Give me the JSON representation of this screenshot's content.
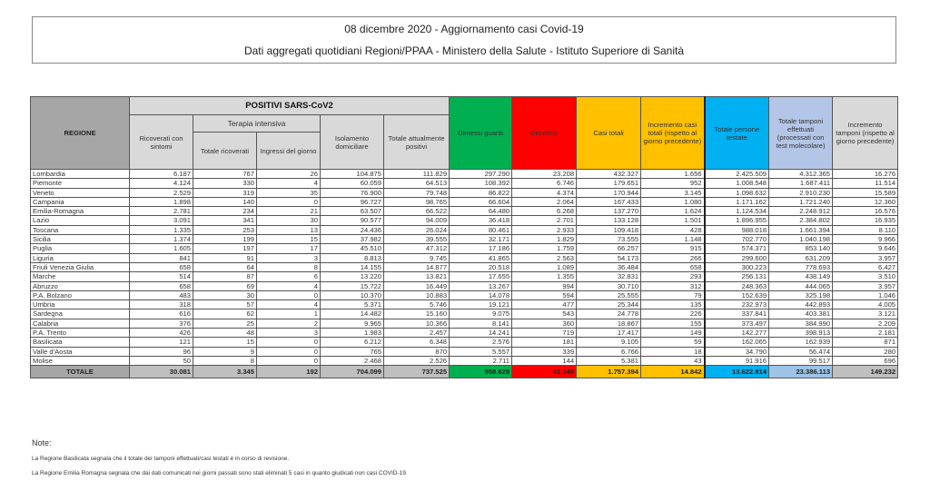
{
  "header": {
    "title": "08 dicembre 2020 - Aggiornamento casi Covid-19",
    "subtitle": "Dati aggregati quotidiani Regioni/PPAA - Ministero della Salute - Istituto Superiore di Sanità"
  },
  "table": {
    "headers": {
      "regione": "REGIONE",
      "positivi": "POSITIVI SARS-CoV2",
      "ricoverati": "Ricoverati con sintomi",
      "terapia": "Terapia intensiva",
      "totale_ricoverati": "Totale ricoverati",
      "ingressi": "Ingressi del giorno",
      "isolamento": "Isolamento domiciliare",
      "totale_positivi": "Totale attualmente positivi",
      "dimessi": "Dimessi guariti",
      "deceduti": "Deceduti",
      "casi": "Casi totali",
      "incremento_casi": "Incremento casi totali (rispetto al giorno precedente)",
      "persone": "Totale persone testate",
      "tamponi": "Totale tamponi effettuati (processati con test molecolare)",
      "incremento_tamponi": "Incremento tamponi (rispetto al giorno precedente)"
    },
    "header_colors": {
      "dimessi": "#00b050",
      "deceduti": "#ff0000",
      "casi": "#ffc000",
      "persone": "#00b0f0",
      "tamponi": "#b4c6e7"
    },
    "rows": [
      [
        "Lombardia",
        "6.187",
        "767",
        "26",
        "104.875",
        "111.829",
        "297.290",
        "23.208",
        "432.327",
        "1.656",
        "2.425.509",
        "4.312.365",
        "16.276"
      ],
      [
        "Piemonte",
        "4.124",
        "330",
        "4",
        "60.059",
        "64.513",
        "108.392",
        "6.746",
        "179.651",
        "952",
        "1.008.548",
        "1.687.411",
        "11.514"
      ],
      [
        "Veneto",
        "2.529",
        "319",
        "35",
        "76.900",
        "79.748",
        "86.822",
        "4.374",
        "170.944",
        "3.145",
        "1.098.632",
        "2.910.230",
        "15.589"
      ],
      [
        "Campania",
        "1.898",
        "140",
        "0",
        "96.727",
        "98.765",
        "66.604",
        "2.064",
        "167.433",
        "1.080",
        "1.171.162",
        "1.721.240",
        "12.360"
      ],
      [
        "Emilia-Romagna",
        "2.781",
        "234",
        "21",
        "63.507",
        "66.522",
        "64.480",
        "6.268",
        "137.270",
        "1.624",
        "1.124.534",
        "2.248.912",
        "16.576"
      ],
      [
        "Lazio",
        "3.091",
        "341",
        "30",
        "90.577",
        "94.009",
        "36.418",
        "2.701",
        "133.128",
        "1.501",
        "1.896.955",
        "2.384.802",
        "16.935"
      ],
      [
        "Toscana",
        "1.335",
        "253",
        "13",
        "24.436",
        "26.024",
        "80.461",
        "2.933",
        "109.418",
        "428",
        "988.018",
        "1.661.394",
        "8.110"
      ],
      [
        "Sicilia",
        "1.374",
        "199",
        "15",
        "37.982",
        "39.555",
        "32.171",
        "1.829",
        "73.555",
        "1.148",
        "702.770",
        "1.040.198",
        "9.966"
      ],
      [
        "Puglia",
        "1.605",
        "197",
        "17",
        "45.510",
        "47.312",
        "17.186",
        "1.759",
        "66.257",
        "915",
        "574.371",
        "853.140",
        "9.646"
      ],
      [
        "Liguria",
        "841",
        "91",
        "3",
        "8.813",
        "9.745",
        "41.865",
        "2.563",
        "54.173",
        "266",
        "299.600",
        "631.209",
        "3.957"
      ],
      [
        "Friuli Venezia Giulia",
        "658",
        "64",
        "8",
        "14.155",
        "14.877",
        "20.518",
        "1.089",
        "36.484",
        "658",
        "300.223",
        "778.693",
        "6.427"
      ],
      [
        "Marche",
        "514",
        "87",
        "6",
        "13.220",
        "13.821",
        "17.655",
        "1.355",
        "32.831",
        "293",
        "256.131",
        "438.149",
        "3.510"
      ],
      [
        "Abruzzo",
        "658",
        "69",
        "4",
        "15.722",
        "16.449",
        "13.267",
        "994",
        "30.710",
        "312",
        "248.363",
        "444.065",
        "3.957"
      ],
      [
        "P.A. Bolzano",
        "483",
        "30",
        "0",
        "10.370",
        "10.883",
        "14.078",
        "594",
        "25.555",
        "79",
        "152.639",
        "325.198",
        "1.046"
      ],
      [
        "Umbria",
        "318",
        "57",
        "4",
        "5.371",
        "5.746",
        "19.121",
        "477",
        "25.344",
        "135",
        "232.973",
        "442.893",
        "4.005"
      ],
      [
        "Sardegna",
        "616",
        "62",
        "1",
        "14.482",
        "15.160",
        "9.075",
        "543",
        "24.778",
        "226",
        "337.841",
        "403.381",
        "3.121"
      ],
      [
        "Calabria",
        "376",
        "25",
        "2",
        "9.965",
        "10.366",
        "8.141",
        "360",
        "18.867",
        "155",
        "373.497",
        "384.990",
        "2.209"
      ],
      [
        "P.A. Trento",
        "426",
        "48",
        "3",
        "1.983",
        "2.457",
        "14.241",
        "719",
        "17.417",
        "149",
        "142.277",
        "398.913",
        "2.181"
      ],
      [
        "Basilicata",
        "121",
        "15",
        "0",
        "6.212",
        "6.348",
        "2.576",
        "181",
        "9.105",
        "59",
        "162.065",
        "162.939",
        "871"
      ],
      [
        "Valle d'Aosta",
        "96",
        "9",
        "0",
        "765",
        "870",
        "5.557",
        "339",
        "6.766",
        "18",
        "34.790",
        "56.474",
        "280"
      ],
      [
        "Molise",
        "50",
        "8",
        "0",
        "2.468",
        "2.526",
        "2.711",
        "144",
        "5.381",
        "43",
        "91.916",
        "99.517",
        "696"
      ]
    ],
    "total": [
      "TOTALE",
      "30.081",
      "3.345",
      "192",
      "704.099",
      "737.525",
      "958.629",
      "61.240",
      "1.757.394",
      "14.842",
      "13.622.814",
      "23.386.113",
      "149.232"
    ]
  },
  "notes": {
    "heading": "Note:",
    "items": [
      "La Regione Basilicata segnala che il totale dei tamponi effettuati/casi testati è in corso di revisione.",
      "La Regione Emilia Romagna segnala che dai dati comunicati nei giorni passati sono stati eliminati 5 casi in quanto giudicati non casi COVID-19."
    ]
  }
}
